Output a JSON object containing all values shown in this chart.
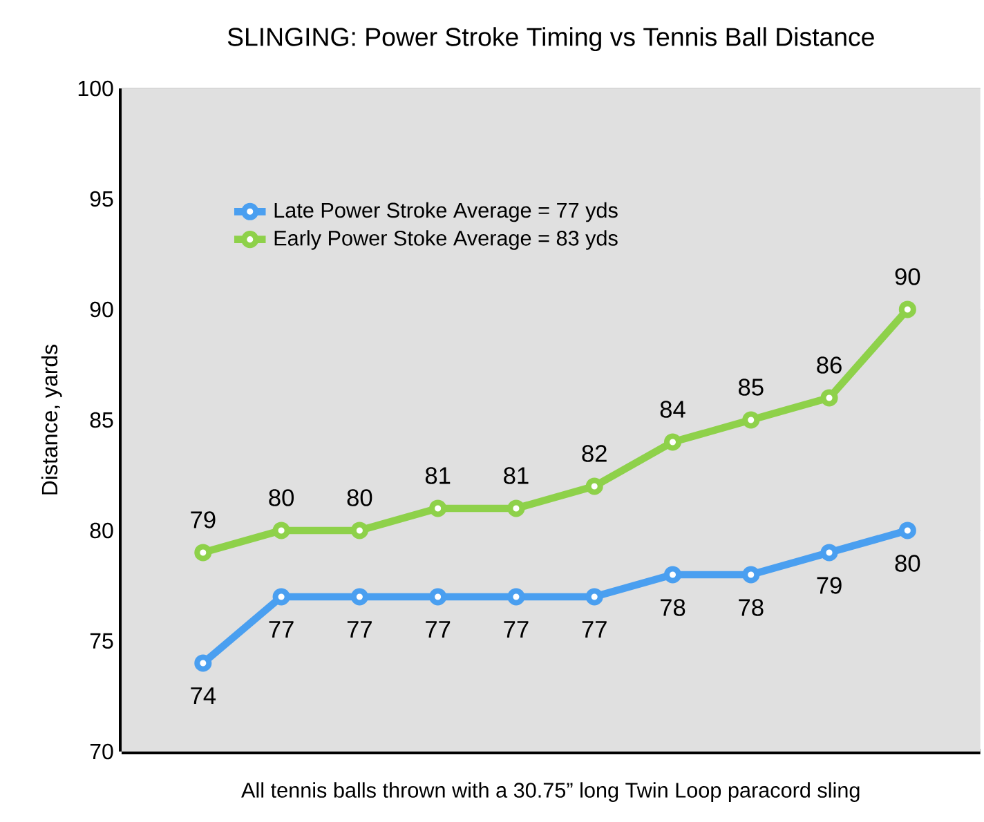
{
  "chart_data": {
    "type": "line",
    "title": "SLINGING:  Power Stroke Timing vs Tennis Ball Distance",
    "ylabel": "Distance, yards",
    "annotations": [
      "All tennis balls thrown with a 30.75” long Twin Loop paracord sling"
    ],
    "categories": [
      null,
      null,
      null,
      null,
      null,
      null,
      null,
      null,
      null,
      null
    ],
    "series": [
      {
        "name": "Late Power Stroke Average = 77 yds",
        "color": "#4a9ff0",
        "values": [
          74,
          77,
          77,
          77,
          77,
          77,
          78,
          78,
          79,
          80
        ]
      },
      {
        "name": "Early Power Stoke Average = 83 yds",
        "color": "#8ed14a",
        "values": [
          79,
          80,
          80,
          81,
          81,
          82,
          84,
          85,
          86,
          90
        ]
      }
    ],
    "ylim": [
      70,
      100
    ],
    "yticks": [
      70,
      75,
      80,
      85,
      90,
      95,
      100
    ],
    "grid": "y",
    "legend": "top left",
    "marker": "circle",
    "line_style": "solid",
    "data_labels": true
  }
}
